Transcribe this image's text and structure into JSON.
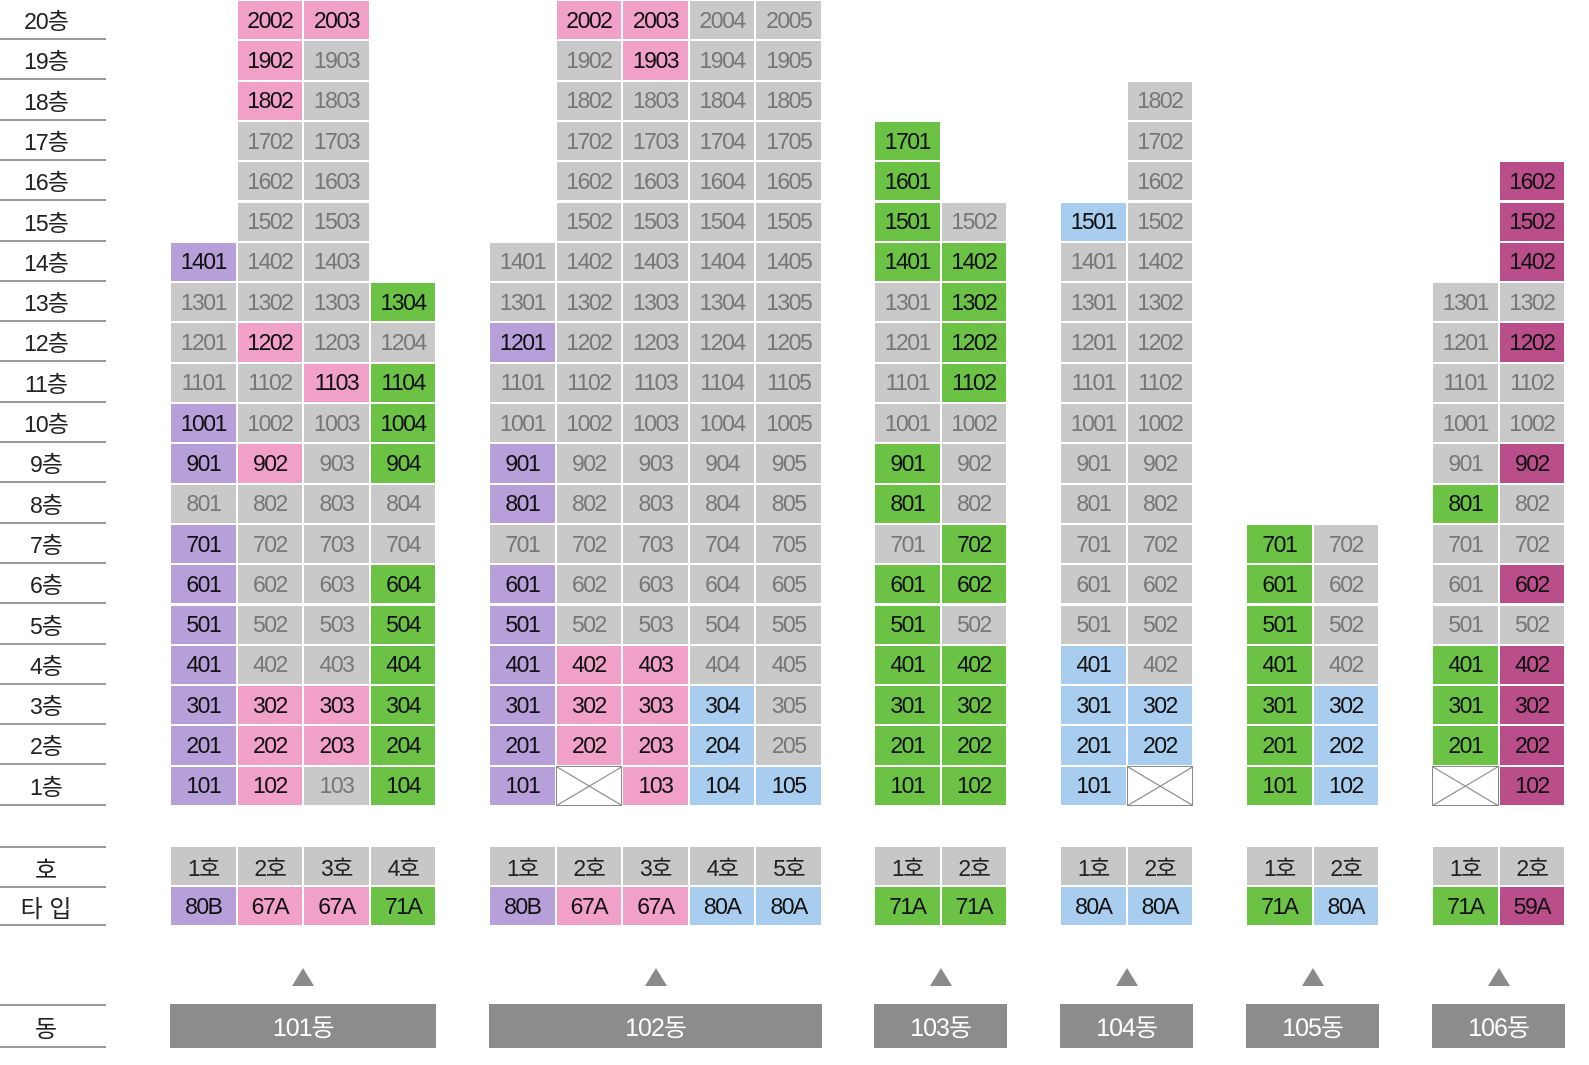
{
  "colors": {
    "sold": "#c9c9c9",
    "80B": "#b79fd9",
    "67A": "#f1a0c8",
    "71A": "#6bc245",
    "80A": "#a9cdee",
    "59A": "#b94e8a",
    "ho_header": "#c7c7c7",
    "dong_bar": "#8c8c8c"
  },
  "labels": {
    "ho": "호",
    "type": "타 입",
    "dong": "동"
  },
  "floors": [
    "20층",
    "19층",
    "18층",
    "17층",
    "16층",
    "15층",
    "14층",
    "13층",
    "12층",
    "11층",
    "10층",
    "9층",
    "8층",
    "7층",
    "6층",
    "5층",
    "4층",
    "3층",
    "2층",
    "1층"
  ],
  "buildings": [
    {
      "name": "101동",
      "ho_labels": [
        "1호",
        "2호",
        "3호",
        "4호"
      ],
      "types": [
        "80B",
        "67A",
        "67A",
        "71A"
      ],
      "columns": [
        [
          [
            "1401",
            "80B"
          ],
          [
            "1301",
            "sold"
          ],
          [
            "1201",
            "sold"
          ],
          [
            "1101",
            "sold"
          ],
          [
            "1001",
            "80B"
          ],
          [
            "901",
            "80B"
          ],
          [
            "801",
            "sold"
          ],
          [
            "701",
            "80B"
          ],
          [
            "601",
            "80B"
          ],
          [
            "501",
            "80B"
          ],
          [
            "401",
            "80B"
          ],
          [
            "301",
            "80B"
          ],
          [
            "201",
            "80B"
          ],
          [
            "101",
            "80B"
          ]
        ],
        [
          [
            "2002",
            "67A"
          ],
          [
            "1902",
            "67A"
          ],
          [
            "1802",
            "67A"
          ],
          [
            "1702",
            "sold"
          ],
          [
            "1602",
            "sold"
          ],
          [
            "1502",
            "sold"
          ],
          [
            "1402",
            "sold"
          ],
          [
            "1302",
            "sold"
          ],
          [
            "1202",
            "67A"
          ],
          [
            "1102",
            "sold"
          ],
          [
            "1002",
            "sold"
          ],
          [
            "902",
            "67A"
          ],
          [
            "802",
            "sold"
          ],
          [
            "702",
            "sold"
          ],
          [
            "602",
            "sold"
          ],
          [
            "502",
            "sold"
          ],
          [
            "402",
            "sold"
          ],
          [
            "302",
            "67A"
          ],
          [
            "202",
            "67A"
          ],
          [
            "102",
            "67A"
          ]
        ],
        [
          [
            "2003",
            "67A"
          ],
          [
            "1903",
            "sold"
          ],
          [
            "1803",
            "sold"
          ],
          [
            "1703",
            "sold"
          ],
          [
            "1603",
            "sold"
          ],
          [
            "1503",
            "sold"
          ],
          [
            "1403",
            "sold"
          ],
          [
            "1303",
            "sold"
          ],
          [
            "1203",
            "sold"
          ],
          [
            "1103",
            "67A"
          ],
          [
            "1003",
            "sold"
          ],
          [
            "903",
            "sold"
          ],
          [
            "803",
            "sold"
          ],
          [
            "703",
            "sold"
          ],
          [
            "603",
            "sold"
          ],
          [
            "503",
            "sold"
          ],
          [
            "403",
            "sold"
          ],
          [
            "303",
            "67A"
          ],
          [
            "203",
            "67A"
          ],
          [
            "103",
            "sold"
          ]
        ],
        [
          [
            "1304",
            "71A"
          ],
          [
            "1204",
            "sold"
          ],
          [
            "1104",
            "71A"
          ],
          [
            "1004",
            "71A"
          ],
          [
            "904",
            "71A"
          ],
          [
            "804",
            "sold"
          ],
          [
            "704",
            "sold"
          ],
          [
            "604",
            "71A"
          ],
          [
            "504",
            "71A"
          ],
          [
            "404",
            "71A"
          ],
          [
            "304",
            "71A"
          ],
          [
            "204",
            "71A"
          ],
          [
            "104",
            "71A"
          ]
        ]
      ]
    },
    {
      "name": "102동",
      "ho_labels": [
        "1호",
        "2호",
        "3호",
        "4호",
        "5호"
      ],
      "types": [
        "80B",
        "67A",
        "67A",
        "80A",
        "80A"
      ],
      "columns": [
        [
          [
            "1401",
            "sold"
          ],
          [
            "1301",
            "sold"
          ],
          [
            "1201",
            "80B"
          ],
          [
            "1101",
            "sold"
          ],
          [
            "1001",
            "sold"
          ],
          [
            "901",
            "80B"
          ],
          [
            "801",
            "80B"
          ],
          [
            "701",
            "sold"
          ],
          [
            "601",
            "80B"
          ],
          [
            "501",
            "80B"
          ],
          [
            "401",
            "80B"
          ],
          [
            "301",
            "80B"
          ],
          [
            "201",
            "80B"
          ],
          [
            "101",
            "80B"
          ]
        ],
        [
          [
            "2002",
            "67A"
          ],
          [
            "1902",
            "sold"
          ],
          [
            "1802",
            "sold"
          ],
          [
            "1702",
            "sold"
          ],
          [
            "1602",
            "sold"
          ],
          [
            "1502",
            "sold"
          ],
          [
            "1402",
            "sold"
          ],
          [
            "1302",
            "sold"
          ],
          [
            "1202",
            "sold"
          ],
          [
            "1102",
            "sold"
          ],
          [
            "1002",
            "sold"
          ],
          [
            "902",
            "sold"
          ],
          [
            "802",
            "sold"
          ],
          [
            "702",
            "sold"
          ],
          [
            "602",
            "sold"
          ],
          [
            "502",
            "sold"
          ],
          [
            "402",
            "67A"
          ],
          [
            "302",
            "67A"
          ],
          [
            "202",
            "67A"
          ],
          [
            "",
            "excluded"
          ]
        ],
        [
          [
            "2003",
            "67A"
          ],
          [
            "1903",
            "67A"
          ],
          [
            "1803",
            "sold"
          ],
          [
            "1703",
            "sold"
          ],
          [
            "1603",
            "sold"
          ],
          [
            "1503",
            "sold"
          ],
          [
            "1403",
            "sold"
          ],
          [
            "1303",
            "sold"
          ],
          [
            "1203",
            "sold"
          ],
          [
            "1103",
            "sold"
          ],
          [
            "1003",
            "sold"
          ],
          [
            "903",
            "sold"
          ],
          [
            "803",
            "sold"
          ],
          [
            "703",
            "sold"
          ],
          [
            "603",
            "sold"
          ],
          [
            "503",
            "sold"
          ],
          [
            "403",
            "67A"
          ],
          [
            "303",
            "67A"
          ],
          [
            "203",
            "67A"
          ],
          [
            "103",
            "67A"
          ]
        ],
        [
          [
            "2004",
            "sold"
          ],
          [
            "1904",
            "sold"
          ],
          [
            "1804",
            "sold"
          ],
          [
            "1704",
            "sold"
          ],
          [
            "1604",
            "sold"
          ],
          [
            "1504",
            "sold"
          ],
          [
            "1404",
            "sold"
          ],
          [
            "1304",
            "sold"
          ],
          [
            "1204",
            "sold"
          ],
          [
            "1104",
            "sold"
          ],
          [
            "1004",
            "sold"
          ],
          [
            "904",
            "sold"
          ],
          [
            "804",
            "sold"
          ],
          [
            "704",
            "sold"
          ],
          [
            "604",
            "sold"
          ],
          [
            "504",
            "sold"
          ],
          [
            "404",
            "sold"
          ],
          [
            "304",
            "80A"
          ],
          [
            "204",
            "80A"
          ],
          [
            "104",
            "80A"
          ]
        ],
        [
          [
            "2005",
            "sold"
          ],
          [
            "1905",
            "sold"
          ],
          [
            "1805",
            "sold"
          ],
          [
            "1705",
            "sold"
          ],
          [
            "1605",
            "sold"
          ],
          [
            "1505",
            "sold"
          ],
          [
            "1405",
            "sold"
          ],
          [
            "1305",
            "sold"
          ],
          [
            "1205",
            "sold"
          ],
          [
            "1105",
            "sold"
          ],
          [
            "1005",
            "sold"
          ],
          [
            "905",
            "sold"
          ],
          [
            "805",
            "sold"
          ],
          [
            "705",
            "sold"
          ],
          [
            "605",
            "sold"
          ],
          [
            "505",
            "sold"
          ],
          [
            "405",
            "sold"
          ],
          [
            "305",
            "sold"
          ],
          [
            "205",
            "sold"
          ],
          [
            "105",
            "80A"
          ]
        ]
      ]
    },
    {
      "name": "103동",
      "ho_labels": [
        "1호",
        "2호"
      ],
      "types": [
        "71A",
        "71A"
      ],
      "columns": [
        [
          [
            "1701",
            "71A"
          ],
          [
            "1601",
            "71A"
          ],
          [
            "1501",
            "71A"
          ],
          [
            "1401",
            "71A"
          ],
          [
            "1301",
            "sold"
          ],
          [
            "1201",
            "sold"
          ],
          [
            "1101",
            "sold"
          ],
          [
            "1001",
            "sold"
          ],
          [
            "901",
            "71A"
          ],
          [
            "801",
            "71A"
          ],
          [
            "701",
            "sold"
          ],
          [
            "601",
            "71A"
          ],
          [
            "501",
            "71A"
          ],
          [
            "401",
            "71A"
          ],
          [
            "301",
            "71A"
          ],
          [
            "201",
            "71A"
          ],
          [
            "101",
            "71A"
          ]
        ],
        [
          [
            "1502",
            "sold"
          ],
          [
            "1402",
            "71A"
          ],
          [
            "1302",
            "71A"
          ],
          [
            "1202",
            "71A"
          ],
          [
            "1102",
            "71A"
          ],
          [
            "1002",
            "sold"
          ],
          [
            "902",
            "sold"
          ],
          [
            "802",
            "sold"
          ],
          [
            "702",
            "71A"
          ],
          [
            "602",
            "71A"
          ],
          [
            "502",
            "sold"
          ],
          [
            "402",
            "71A"
          ],
          [
            "302",
            "71A"
          ],
          [
            "202",
            "71A"
          ],
          [
            "102",
            "71A"
          ]
        ]
      ]
    },
    {
      "name": "104동",
      "ho_labels": [
        "1호",
        "2호"
      ],
      "types": [
        "80A",
        "80A"
      ],
      "columns": [
        [
          [
            "1501",
            "80A"
          ],
          [
            "1401",
            "sold"
          ],
          [
            "1301",
            "sold"
          ],
          [
            "1201",
            "sold"
          ],
          [
            "1101",
            "sold"
          ],
          [
            "1001",
            "sold"
          ],
          [
            "901",
            "sold"
          ],
          [
            "801",
            "sold"
          ],
          [
            "701",
            "sold"
          ],
          [
            "601",
            "sold"
          ],
          [
            "501",
            "sold"
          ],
          [
            "401",
            "80A"
          ],
          [
            "301",
            "80A"
          ],
          [
            "201",
            "80A"
          ],
          [
            "101",
            "80A"
          ]
        ],
        [
          [
            "1802",
            "sold"
          ],
          [
            "1702",
            "sold"
          ],
          [
            "1602",
            "sold"
          ],
          [
            "1502",
            "sold"
          ],
          [
            "1402",
            "sold"
          ],
          [
            "1302",
            "sold"
          ],
          [
            "1202",
            "sold"
          ],
          [
            "1102",
            "sold"
          ],
          [
            "1002",
            "sold"
          ],
          [
            "902",
            "sold"
          ],
          [
            "802",
            "sold"
          ],
          [
            "702",
            "sold"
          ],
          [
            "602",
            "sold"
          ],
          [
            "502",
            "sold"
          ],
          [
            "402",
            "sold"
          ],
          [
            "302",
            "80A"
          ],
          [
            "202",
            "80A"
          ],
          [
            "",
            "excluded"
          ]
        ]
      ]
    },
    {
      "name": "105동",
      "ho_labels": [
        "1호",
        "2호"
      ],
      "types": [
        "71A",
        "80A"
      ],
      "columns": [
        [
          [
            "701",
            "71A"
          ],
          [
            "601",
            "71A"
          ],
          [
            "501",
            "71A"
          ],
          [
            "401",
            "71A"
          ],
          [
            "301",
            "71A"
          ],
          [
            "201",
            "71A"
          ],
          [
            "101",
            "71A"
          ]
        ],
        [
          [
            "702",
            "sold"
          ],
          [
            "602",
            "sold"
          ],
          [
            "502",
            "sold"
          ],
          [
            "402",
            "sold"
          ],
          [
            "302",
            "80A"
          ],
          [
            "202",
            "80A"
          ],
          [
            "102",
            "80A"
          ]
        ]
      ]
    },
    {
      "name": "106동",
      "ho_labels": [
        "1호",
        "2호"
      ],
      "types": [
        "71A",
        "59A"
      ],
      "columns": [
        [
          [
            "1301",
            "sold"
          ],
          [
            "1201",
            "sold"
          ],
          [
            "1101",
            "sold"
          ],
          [
            "1001",
            "sold"
          ],
          [
            "901",
            "sold"
          ],
          [
            "801",
            "71A"
          ],
          [
            "701",
            "sold"
          ],
          [
            "601",
            "sold"
          ],
          [
            "501",
            "sold"
          ],
          [
            "401",
            "71A"
          ],
          [
            "301",
            "71A"
          ],
          [
            "201",
            "71A"
          ],
          [
            "",
            "excluded"
          ]
        ],
        [
          [
            "1602",
            "59A"
          ],
          [
            "1502",
            "59A"
          ],
          [
            "1402",
            "59A"
          ],
          [
            "1302",
            "sold"
          ],
          [
            "1202",
            "59A"
          ],
          [
            "1102",
            "sold"
          ],
          [
            "1002",
            "sold"
          ],
          [
            "902",
            "59A"
          ],
          [
            "802",
            "sold"
          ],
          [
            "702",
            "sold"
          ],
          [
            "602",
            "59A"
          ],
          [
            "502",
            "sold"
          ],
          [
            "402",
            "59A"
          ],
          [
            "302",
            "59A"
          ],
          [
            "202",
            "59A"
          ],
          [
            "102",
            "59A"
          ]
        ]
      ]
    }
  ]
}
